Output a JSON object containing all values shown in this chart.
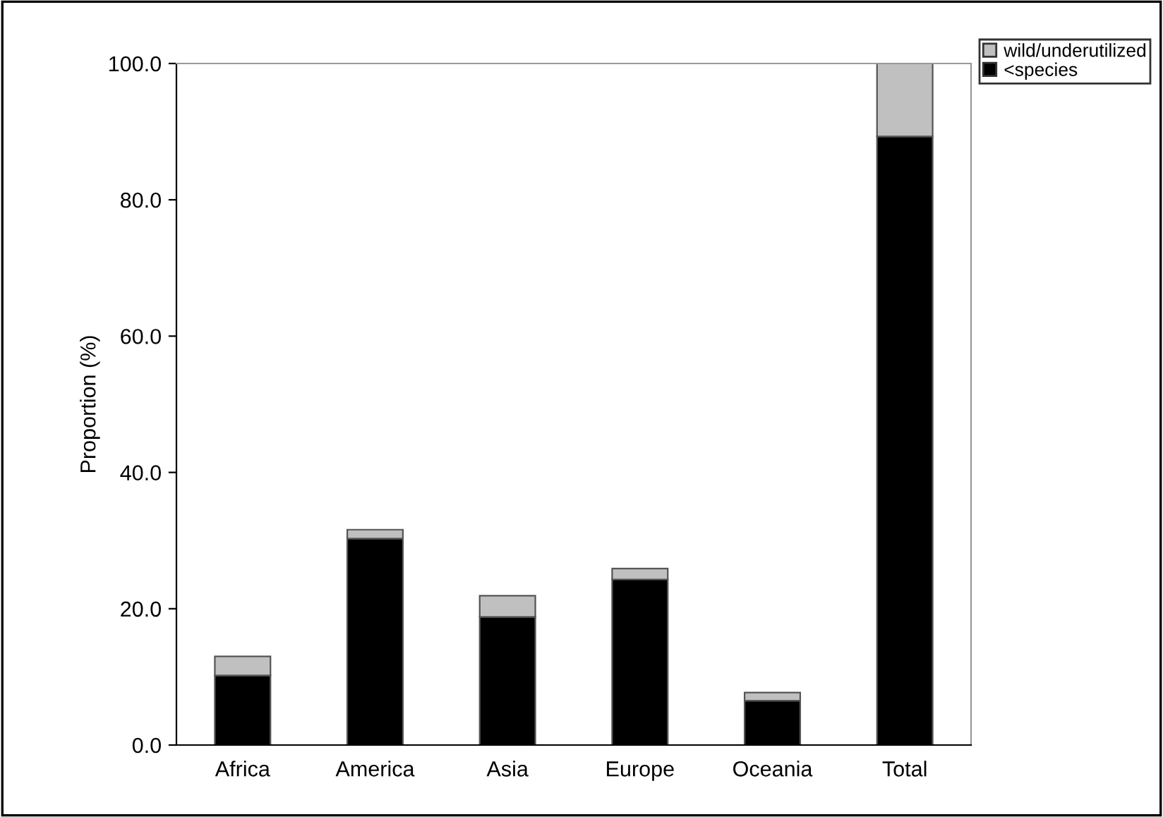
{
  "chart_data": {
    "type": "bar",
    "stacked": true,
    "ylabel": "Proportion (%)",
    "categories": [
      "Africa",
      "America",
      "Asia",
      "Europe",
      "Oceania",
      "Total"
    ],
    "series": [
      {
        "name": "<species",
        "color": "#000000",
        "values": [
          10.2,
          30.3,
          18.8,
          24.3,
          6.5,
          89.3
        ]
      },
      {
        "name": "wild/underutilized",
        "color": "#c0c0c0",
        "values": [
          2.8,
          1.3,
          3.1,
          1.6,
          1.2,
          10.7
        ]
      }
    ],
    "ylim": [
      0,
      100
    ],
    "yticks": [
      {
        "value": 0,
        "label": "0.0"
      },
      {
        "value": 20,
        "label": "20.0"
      },
      {
        "value": 40,
        "label": "40.0"
      },
      {
        "value": 60,
        "label": "60.0"
      },
      {
        "value": 80,
        "label": "80.0"
      },
      {
        "value": 100,
        "label": "100.0"
      }
    ],
    "grid": false,
    "legend": "top right"
  }
}
